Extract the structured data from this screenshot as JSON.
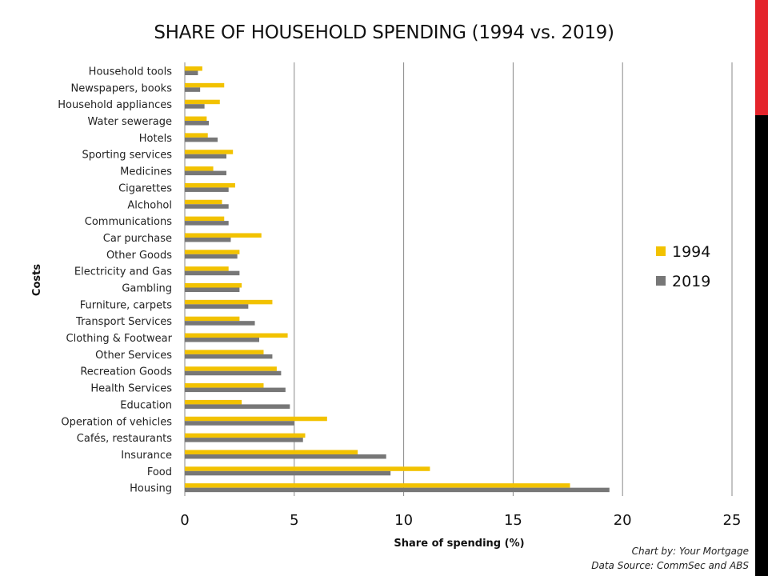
{
  "colors": {
    "accent_red": "#e4242b",
    "accent_black": "#000000",
    "series_1994": "#f2c200",
    "series_2019": "#777777",
    "grid": "#888888"
  },
  "credits": {
    "chart_by": "Chart by: Your Mortgage",
    "data_source": "Data Source: CommSec and ABS"
  },
  "chart_data": {
    "type": "bar",
    "orientation": "horizontal",
    "title": "SHARE OF HOUSEHOLD SPENDING (1994 vs. 2019)",
    "xlabel": "Share of spending (%)",
    "ylabel": "Costs",
    "xlim": [
      0,
      25
    ],
    "xticks": [
      0,
      5,
      10,
      15,
      20,
      25
    ],
    "grid": "vertical",
    "legend_position": "right",
    "categories": [
      "Household tools",
      "Newspapers, books",
      "Household appliances",
      "Water sewerage",
      "Hotels",
      "Sporting services",
      "Medicines",
      "Cigarettes",
      "Alchohol",
      "Communications",
      "Car purchase",
      "Other Goods",
      "Electricity and Gas",
      "Gambling",
      "Furniture, carpets",
      "Transport Services",
      "Clothing & Footwear",
      "Other Services",
      "Recreation Goods",
      "Health Services",
      "Education",
      "Operation of vehicles",
      "Cafés, restaurants",
      "Insurance",
      "Food",
      "Housing"
    ],
    "series": [
      {
        "name": "1994",
        "color": "#f2c200",
        "values": [
          0.8,
          1.8,
          1.6,
          1.0,
          1.05,
          2.2,
          1.3,
          2.3,
          1.7,
          1.8,
          3.5,
          2.5,
          2.0,
          2.6,
          4.0,
          2.5,
          4.7,
          3.6,
          4.2,
          3.6,
          2.6,
          6.5,
          5.5,
          7.9,
          11.2,
          17.6
        ]
      },
      {
        "name": "2019",
        "color": "#777777",
        "values": [
          0.6,
          0.7,
          0.9,
          1.1,
          1.5,
          1.9,
          1.9,
          2.0,
          2.0,
          2.0,
          2.1,
          2.4,
          2.5,
          2.5,
          2.9,
          3.2,
          3.4,
          4.0,
          4.4,
          4.6,
          4.8,
          5.0,
          5.4,
          9.2,
          9.4,
          19.4
        ]
      }
    ]
  }
}
